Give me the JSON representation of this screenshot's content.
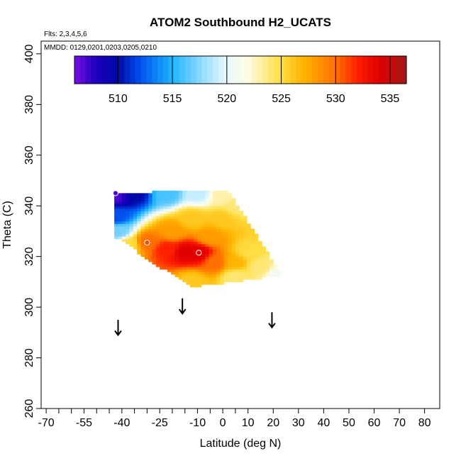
{
  "chart_data": {
    "type": "heatmap",
    "title": "ATOM2 Southbound H2_UCATS",
    "flights_note": "Flts: 2,3,4,5,6",
    "dates_note": "MMDD: 0129,0201,0203,0205,0210",
    "xlabel": "Latitude (deg N)",
    "ylabel": "Theta (C)",
    "xlim": [
      -72,
      86
    ],
    "ylim": [
      260,
      405
    ],
    "x_ticks": [
      -70,
      -55,
      -40,
      -25,
      -10,
      0,
      10,
      20,
      30,
      40,
      50,
      60,
      70,
      80
    ],
    "x_tick_labels": [
      "-70",
      "-55",
      "-40",
      "-25",
      "-10",
      "0",
      "10",
      "20",
      "30",
      "40",
      "50",
      "60",
      "70",
      "80"
    ],
    "x_minor_ticks": [
      -65,
      -60,
      -50,
      -45,
      -35,
      -30,
      -20,
      -15,
      -5,
      5
    ],
    "y_ticks": [
      260,
      280,
      300,
      320,
      340,
      360,
      380,
      400
    ],
    "y_tick_labels": [
      "260",
      "280",
      "300",
      "320",
      "340",
      "360",
      "380",
      "400"
    ],
    "colorbar": {
      "range": [
        506,
        536.5
      ],
      "ticks": [
        510,
        515,
        520,
        525,
        530,
        535
      ],
      "tick_labels": [
        "510",
        "515",
        "520",
        "525",
        "530",
        "535"
      ],
      "color_stops": [
        [
          506,
          "#7b10e0"
        ],
        [
          508,
          "#1a00c0"
        ],
        [
          510,
          "#0008a8"
        ],
        [
          512,
          "#0050ee"
        ],
        [
          515,
          "#1eb4ff"
        ],
        [
          518,
          "#9ee0ff"
        ],
        [
          520,
          "#eaf8ff"
        ],
        [
          522,
          "#fffce0"
        ],
        [
          525,
          "#ffdc40"
        ],
        [
          527,
          "#ffb400"
        ],
        [
          530,
          "#ff7000"
        ],
        [
          532,
          "#ff2000"
        ],
        [
          534,
          "#e00000"
        ],
        [
          536.5,
          "#a01818"
        ]
      ]
    },
    "arrows": [
      {
        "lat": -41.5,
        "theta_top": 295,
        "theta_bottom": 289
      },
      {
        "lat": -16,
        "theta_top": 303.5,
        "theta_bottom": 297.5
      },
      {
        "lat": 19.5,
        "theta_top": 298,
        "theta_bottom": 292
      }
    ],
    "points": [
      {
        "lat": -42.5,
        "theta": 345,
        "value": 507
      },
      {
        "lat": -30,
        "theta": 325.5,
        "value": 531
      },
      {
        "lat": -9.5,
        "theta": 321.5,
        "value": 534
      }
    ],
    "field_polygon": [
      [
        -42.5,
        345.5
      ],
      [
        -28,
        345.5
      ],
      [
        2,
        346
      ],
      [
        24,
        312
      ],
      [
        16,
        311.5
      ],
      [
        -12,
        308
      ],
      [
        -30,
        319
      ],
      [
        -40,
        326.5
      ],
      [
        -42.5,
        327
      ]
    ],
    "field_anchors": [
      {
        "lat": -42.5,
        "theta": 344,
        "value": 507
      },
      {
        "lat": -35,
        "theta": 345,
        "value": 510
      },
      {
        "lat": -22,
        "theta": 345,
        "value": 516
      },
      {
        "lat": -10,
        "theta": 345,
        "value": 519
      },
      {
        "lat": 0,
        "theta": 344,
        "value": 523
      },
      {
        "lat": -42,
        "theta": 336,
        "value": 512
      },
      {
        "lat": -41,
        "theta": 330,
        "value": 517
      },
      {
        "lat": -37,
        "theta": 325,
        "value": 525
      },
      {
        "lat": -30,
        "theta": 326,
        "value": 530
      },
      {
        "lat": -22,
        "theta": 323,
        "value": 532
      },
      {
        "lat": -15,
        "theta": 322,
        "value": 534
      },
      {
        "lat": -9.5,
        "theta": 321.5,
        "value": 534
      },
      {
        "lat": -20,
        "theta": 330,
        "value": 528
      },
      {
        "lat": -12,
        "theta": 335,
        "value": 526
      },
      {
        "lat": -5,
        "theta": 328,
        "value": 528
      },
      {
        "lat": 0,
        "theta": 335,
        "value": 526
      },
      {
        "lat": -3,
        "theta": 318,
        "value": 530
      },
      {
        "lat": 5,
        "theta": 318,
        "value": 527
      },
      {
        "lat": 10,
        "theta": 322,
        "value": 525
      },
      {
        "lat": 15,
        "theta": 316,
        "value": 524
      },
      {
        "lat": 22,
        "theta": 313,
        "value": 521
      },
      {
        "lat": -12,
        "theta": 310,
        "value": 526
      },
      {
        "lat": 5,
        "theta": 312,
        "value": 524
      },
      {
        "lat": 5,
        "theta": 340,
        "value": 524
      }
    ]
  }
}
